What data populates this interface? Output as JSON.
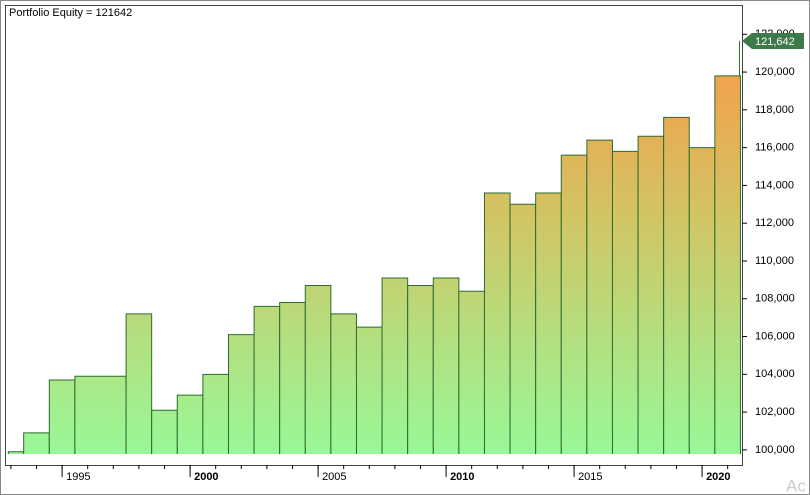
{
  "chart_data": {
    "type": "step-area",
    "title": "Portfolio Equity = 121642",
    "watermark": "Ac",
    "x": [
      1992.9,
      1993.5,
      1994.5,
      1995.5,
      1997.5,
      1998.5,
      1999.5,
      2000.5,
      2001.5,
      2002.5,
      2003.5,
      2004.5,
      2005.5,
      2006.5,
      2007.5,
      2008.5,
      2009.5,
      2010.5,
      2011.5,
      2012.5,
      2013.5,
      2014.5,
      2015.5,
      2016.5,
      2017.5,
      2018.5,
      2019.5,
      2020.5,
      2021.5
    ],
    "series": [
      {
        "name": "Portfolio Equity",
        "color": "#2e6b2e",
        "values": [
          99900,
          100900,
          103700,
          103900,
          107200,
          102100,
          102900,
          104000,
          106100,
          107600,
          107800,
          108700,
          107200,
          106500,
          109100,
          108700,
          109100,
          108400,
          113600,
          113000,
          113600,
          115600,
          116400,
          115800,
          116600,
          117600,
          116000,
          119800,
          121642
        ],
        "value_labels": [
          null,
          null,
          null,
          null,
          null,
          null,
          null,
          null,
          null,
          null,
          null,
          null,
          null,
          null,
          null,
          null,
          null,
          null,
          null,
          null,
          null,
          null,
          null,
          null,
          null,
          null,
          null,
          null,
          "121,642"
        ]
      }
    ],
    "gradient": [
      "#f2a24c",
      "#cfc767",
      "#98f898"
    ],
    "marker_color": "#3d7a4a",
    "xlim": [
      1992.77,
      2021.56
    ],
    "xticks": [
      1995,
      2000,
      2005,
      2010,
      2015,
      2020
    ],
    "ylim": [
      99200,
      123550
    ],
    "yticks": [
      {
        "value": 100000,
        "label": "100,000"
      },
      {
        "value": 102000,
        "label": "102,000"
      },
      {
        "value": 104000,
        "label": "104,000"
      },
      {
        "value": 106000,
        "label": "106,000"
      },
      {
        "value": 108000,
        "label": "108,000"
      },
      {
        "value": 110000,
        "label": "110,000"
      },
      {
        "value": 112000,
        "label": "112,000"
      },
      {
        "value": 114000,
        "label": "114,000"
      },
      {
        "value": 116000,
        "label": "116,000"
      },
      {
        "value": 118000,
        "label": "118,000"
      },
      {
        "value": 120000,
        "label": "120,000"
      },
      {
        "value": 122000,
        "label": "122,000"
      }
    ]
  }
}
